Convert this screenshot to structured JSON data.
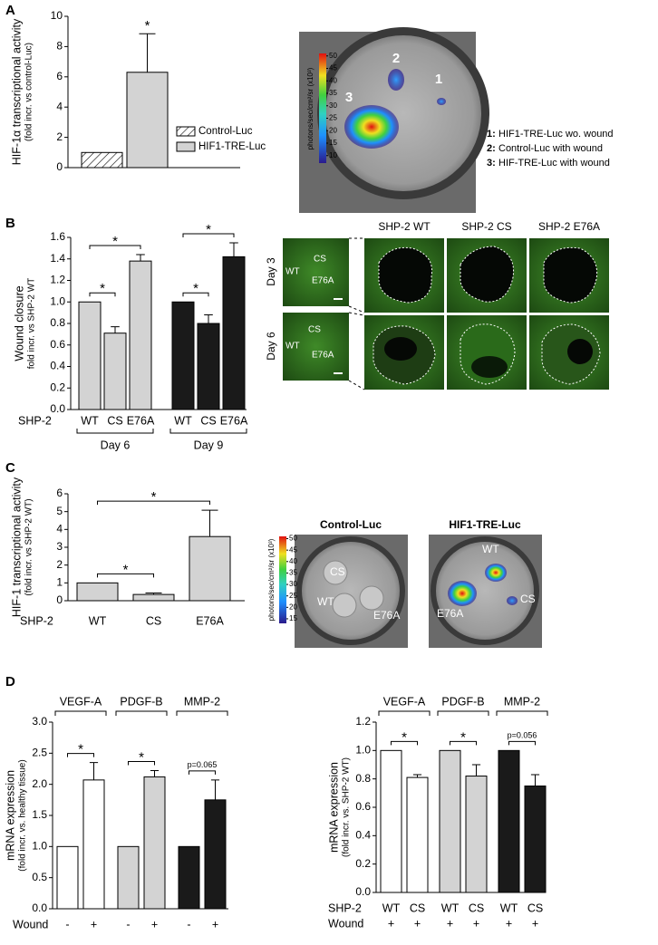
{
  "panel_labels": [
    "A",
    "B",
    "C",
    "D"
  ],
  "chart_data": [
    {
      "type": "bar",
      "ylabel": "HIF-1α transcriptional activity",
      "ylabel_sub": "(fold incr. vs control-Luc)",
      "ylim": [
        0,
        10
      ],
      "yticks": [
        0,
        2,
        4,
        6,
        8,
        10
      ],
      "legend": true,
      "series": [
        {
          "name": "Control-Luc",
          "color": "#ffffff",
          "pattern": "hatch",
          "values": [
            1.0
          ],
          "errors": [
            null
          ]
        },
        {
          "name": "HIF1-TRE-Luc",
          "color": "#d3d3d3",
          "values": [
            6.3
          ],
          "errors": [
            2.55
          ],
          "annotations": [
            "*"
          ]
        }
      ]
    },
    {
      "type": "grouped_bar",
      "ylabel": "Wound closure",
      "ylabel_sub": "fold incr. vs SHP-2 WT",
      "ylim": [
        0,
        1.6
      ],
      "yticks": [
        {
          "value": 0,
          "label": "0.0"
        },
        0.2,
        0.4,
        0.6,
        0.8,
        {
          "value": 1,
          "label": "1.0"
        },
        1.2,
        1.4,
        1.6
      ],
      "row_labels": [
        "SHP-2"
      ],
      "group_label_position": "bottom",
      "series": [
        {
          "name": "Day 6",
          "color": "#d3d3d3",
          "categories": [
            "WT",
            "CS",
            "E76A"
          ],
          "values": [
            1.0,
            0.71,
            1.38
          ],
          "errors": [
            null,
            0.06,
            0.06
          ],
          "significance": [
            {
              "between": [
                "WT",
                "CS"
              ],
              "label": "*"
            },
            {
              "between": [
                "WT",
                "E76A"
              ],
              "label": "*"
            }
          ]
        },
        {
          "name": "Day 9",
          "color": "#1a1a1a",
          "categories": [
            "WT",
            "CS",
            "E76A"
          ],
          "values": [
            1.0,
            0.8,
            1.42
          ],
          "errors": [
            null,
            0.08,
            0.13
          ],
          "significance": [
            {
              "between": [
                "WT",
                "CS"
              ],
              "label": "*"
            },
            {
              "between": [
                "WT",
                "E76A"
              ],
              "label": "*"
            }
          ]
        }
      ]
    },
    {
      "type": "grouped_bar",
      "ylabel": "HIF-1 transcriptional activity",
      "ylabel_sub": "(fold incr. vs SHP-2 WT)",
      "ylim": [
        0,
        6
      ],
      "yticks": [
        0,
        1,
        2,
        3,
        4,
        5,
        6
      ],
      "row_labels": [
        "SHP-2"
      ],
      "series": [
        {
          "color": "#d3d3d3",
          "categories": [
            "WT",
            "CS",
            "E76A"
          ],
          "values": [
            1.0,
            0.35,
            3.6
          ],
          "errors": [
            null,
            0.08,
            1.48
          ],
          "significance": [
            {
              "between": [
                "WT",
                "CS"
              ],
              "label": "*"
            },
            {
              "between": [
                "WT",
                "E76A"
              ],
              "label": "*"
            }
          ]
        }
      ]
    },
    {
      "type": "grouped_bar",
      "ylabel": "mRNA expression",
      "ylabel_sub": "(fold incr. vs. healthy tissue)",
      "ylim": [
        0,
        3
      ],
      "yticks": [
        {
          "value": 0,
          "label": "0.0"
        },
        0.5,
        {
          "value": 1,
          "label": "1.0"
        },
        1.5,
        {
          "value": 2,
          "label": "2.0"
        },
        2.5,
        {
          "value": 3,
          "label": "3.0"
        }
      ],
      "row_labels": [
        "Wound"
      ],
      "group_label_position": "top",
      "series": [
        {
          "name": "VEGF-A",
          "color": "#ffffff",
          "categories": [
            "-",
            "+"
          ],
          "values": [
            1.0,
            2.07
          ],
          "errors": [
            null,
            0.28
          ],
          "significance": [
            {
              "between": [
                "-",
                "+"
              ],
              "label": "*"
            }
          ]
        },
        {
          "name": "PDGF-B",
          "color": "#d3d3d3",
          "categories": [
            "-",
            "+"
          ],
          "values": [
            1.0,
            2.12
          ],
          "errors": [
            null,
            0.1
          ],
          "significance": [
            {
              "between": [
                "-",
                "+"
              ],
              "label": "*"
            }
          ]
        },
        {
          "name": "MMP-2",
          "color": "#1a1a1a",
          "categories": [
            "-",
            "+"
          ],
          "values": [
            1.0,
            1.75
          ],
          "errors": [
            null,
            0.32
          ],
          "significance": [
            {
              "between": [
                "-",
                "+"
              ],
              "label": "p=0.065"
            }
          ]
        }
      ]
    },
    {
      "type": "grouped_bar",
      "ylabel": "mRNA expression",
      "ylabel_sub": "(fold incr. vs. SHP-2 WT)",
      "ylim": [
        0,
        1.2
      ],
      "yticks": [
        {
          "value": 0,
          "label": "0.0"
        },
        0.2,
        0.4,
        0.6,
        0.8,
        {
          "value": 1,
          "label": "1.0"
        },
        1.2
      ],
      "row_labels": [
        "SHP-2",
        "Wound"
      ],
      "group_label_position": "top",
      "series": [
        {
          "name": "VEGF-A",
          "color": "#ffffff",
          "categories": [
            "WT",
            "CS"
          ],
          "sublabels": [
            "+",
            "+"
          ],
          "values": [
            1.0,
            0.81
          ],
          "errors": [
            null,
            0.02
          ],
          "significance": [
            {
              "between": [
                "WT",
                "CS"
              ],
              "label": "*"
            }
          ]
        },
        {
          "name": "PDGF-B",
          "color": "#d3d3d3",
          "categories": [
            "WT",
            "CS"
          ],
          "sublabels": [
            "+",
            "+"
          ],
          "values": [
            1.0,
            0.82
          ],
          "errors": [
            null,
            0.08
          ],
          "significance": [
            {
              "between": [
                "WT",
                "CS"
              ],
              "label": "*"
            }
          ]
        },
        {
          "name": "MMP-2",
          "color": "#1a1a1a",
          "categories": [
            "WT",
            "CS"
          ],
          "sublabels": [
            "+",
            "+"
          ],
          "values": [
            1.0,
            0.75
          ],
          "errors": [
            null,
            0.08
          ],
          "significance": [
            {
              "between": [
                "WT",
                "CS"
              ],
              "label": "p=0.056"
            }
          ]
        }
      ]
    }
  ],
  "images": {
    "A": {
      "colorbar": {
        "label": "photons/sec/cm²/sr (x10³)",
        "lim": [
          7,
          51
        ],
        "ticks": [
          10,
          15,
          20,
          25,
          30,
          35,
          40,
          45,
          50
        ]
      },
      "spot_labels": [
        "1",
        "2",
        "3"
      ],
      "key": [
        {
          "num": "1:",
          "text": "HIF1-TRE-Luc wo. wound"
        },
        {
          "num": "2:",
          "text": "Control-Luc with wound"
        },
        {
          "num": "3:",
          "text": "HIF-TRE-Luc with wound"
        }
      ]
    },
    "B": {
      "rows": [
        "Day 3",
        "Day 6"
      ],
      "columns": [
        "SHP-2 WT",
        "SHP-2 CS",
        "SHP-2 E76A"
      ],
      "overview_labels": [
        "WT",
        "CS",
        "E76A"
      ]
    },
    "C": {
      "colorbar": {
        "label": "photons/sec/cm²/sr (x10³)",
        "lim": [
          13,
          51
        ],
        "ticks": [
          15,
          20,
          25,
          30,
          35,
          40,
          45,
          50
        ]
      },
      "titles": [
        "Control-Luc",
        "HIF1-TRE-Luc"
      ],
      "well_labels": [
        "CS",
        "WT",
        "E76A"
      ]
    }
  }
}
